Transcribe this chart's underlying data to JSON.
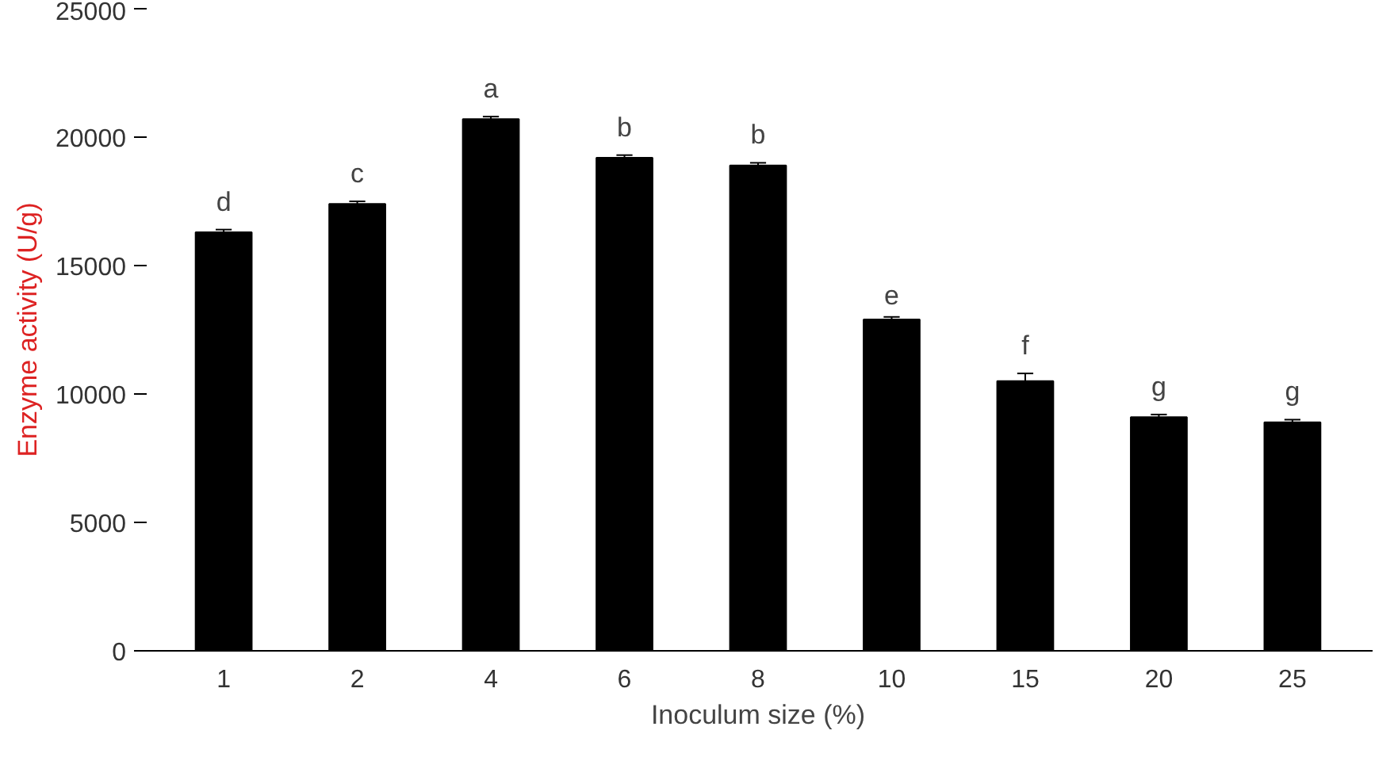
{
  "chart_data": {
    "type": "bar",
    "xlabel": "Inoculum size (%)",
    "ylabel": "Enzyme activity (U/g)",
    "categories": [
      "1",
      "2",
      "4",
      "6",
      "8",
      "10",
      "15",
      "20",
      "25"
    ],
    "values": [
      16300,
      17400,
      20700,
      19200,
      18900,
      12900,
      10500,
      9100,
      8900
    ],
    "errors": [
      100,
      100,
      100,
      100,
      100,
      100,
      300,
      100,
      100
    ],
    "color": "#000000",
    "ylim": [
      0,
      25000
    ],
    "yticks": [
      0,
      5000,
      10000,
      15000,
      20000,
      25000
    ],
    "grid": false,
    "annotations": [
      {
        "text": "d",
        "x": "1",
        "y": 16300
      },
      {
        "text": "c",
        "x": "2",
        "y": 17400
      },
      {
        "text": "a",
        "x": "4",
        "y": 20700
      },
      {
        "text": "b",
        "x": "6",
        "y": 19200
      },
      {
        "text": "b",
        "x": "8",
        "y": 18900
      },
      {
        "text": "e",
        "x": "10",
        "y": 12900
      },
      {
        "text": "f",
        "x": "15",
        "y": 10500
      },
      {
        "text": "g",
        "x": "20",
        "y": 9100
      },
      {
        "text": "g",
        "x": "25",
        "y": 8900
      }
    ]
  }
}
